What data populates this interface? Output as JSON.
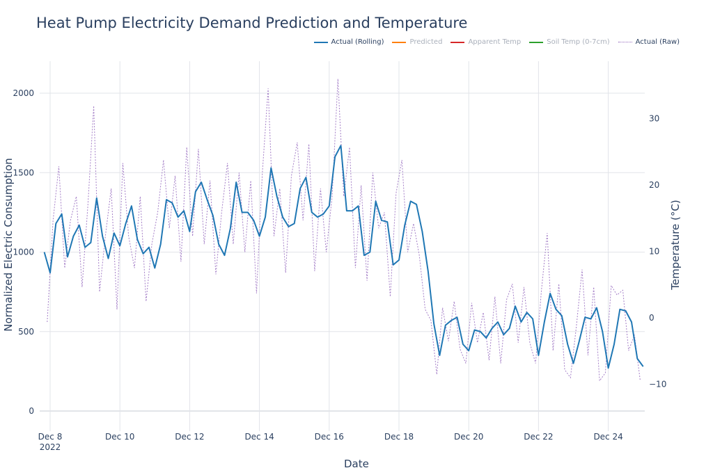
{
  "chart_data": {
    "type": "line",
    "title": "Heat Pump Electricity Demand Prediction and Temperature",
    "xlabel": "Date",
    "ylabel": "Normalized Electric Consumption",
    "y2label": "Temperature (°C)",
    "xlim": [
      "2022-12-07T20:00",
      "2022-12-25T01:00"
    ],
    "ylim": [
      -130,
      2200
    ],
    "y2ticks": [
      30,
      20,
      10,
      0,
      -10
    ],
    "y2ticks_labels": [
      "30",
      "20",
      "10",
      "0",
      "−10"
    ],
    "yticks": [
      0,
      500,
      1000,
      1500,
      2000
    ],
    "yticks_labels": [
      "0",
      "500",
      "1000",
      "1500",
      "2000"
    ],
    "xticks": [
      "2022-12-08",
      "2022-12-10",
      "2022-12-12",
      "2022-12-14",
      "2022-12-16",
      "2022-12-18",
      "2022-12-20",
      "2022-12-22",
      "2022-12-24"
    ],
    "xticks_labels": [
      "Dec 8",
      "Dec 10",
      "Dec 12",
      "Dec 14",
      "Dec 16",
      "Dec 18",
      "Dec 20",
      "Dec 22",
      "Dec 24"
    ],
    "xtick_year": "2022",
    "grid": true,
    "legend_position": "top-right",
    "legend": [
      {
        "name": "Actual (Rolling)",
        "color": "#1f77b4",
        "style": "solid",
        "visible": true
      },
      {
        "name": "Predicted",
        "color": "#ff7f0e",
        "style": "solid",
        "visible": false
      },
      {
        "name": "Apparent Temp",
        "color": "#d62728",
        "style": "solid",
        "visible": false
      },
      {
        "name": "Soil Temp (0-7cm)",
        "color": "#2ca02c",
        "style": "solid",
        "visible": false
      },
      {
        "name": "Actual (Raw)",
        "color": "#9467bd",
        "style": "dot",
        "visible": true
      }
    ],
    "series": [
      {
        "name": "Actual (Rolling)",
        "color": "#1f77b4",
        "start": "2022-12-07T20:00",
        "interval_hours": 4,
        "values": [
          1000,
          870,
          1180,
          1240,
          970,
          1100,
          1170,
          1030,
          1060,
          1340,
          1100,
          960,
          1120,
          1040,
          1180,
          1290,
          1080,
          990,
          1030,
          900,
          1050,
          1330,
          1310,
          1220,
          1260,
          1130,
          1380,
          1440,
          1330,
          1230,
          1050,
          980,
          1150,
          1440,
          1250,
          1250,
          1200,
          1100,
          1220,
          1530,
          1350,
          1220,
          1160,
          1180,
          1400,
          1470,
          1250,
          1220,
          1240,
          1290,
          1600,
          1670,
          1260,
          1260,
          1290,
          980,
          1000,
          1320,
          1200,
          1190,
          920,
          950,
          1170,
          1320,
          1300,
          1130,
          880,
          550,
          350,
          540,
          570,
          590,
          420,
          380,
          510,
          500,
          460,
          520,
          560,
          480,
          520,
          660,
          560,
          620,
          580,
          350,
          560,
          740,
          640,
          600,
          420,
          300,
          440,
          590,
          580,
          650,
          500,
          270,
          420,
          640,
          630,
          560,
          330,
          280
        ]
      },
      {
        "name": "Actual (Raw)",
        "color": "#9467bd",
        "start": "2022-12-07T22:00",
        "interval_hours": 4,
        "values": [
          560,
          1200,
          1540,
          900,
          1200,
          1350,
          780,
          1300,
          1920,
          750,
          1100,
          1400,
          640,
          1560,
          1100,
          900,
          1350,
          690,
          1050,
          1250,
          1580,
          1150,
          1480,
          940,
          1660,
          1100,
          1650,
          1050,
          1450,
          860,
          1250,
          1560,
          1050,
          1500,
          1000,
          1450,
          740,
          1500,
          2030,
          1100,
          1400,
          870,
          1480,
          1690,
          1200,
          1680,
          880,
          1400,
          1000,
          1350,
          2090,
          1350,
          1660,
          900,
          1420,
          820,
          1500,
          1150,
          1250,
          720,
          1370,
          1580,
          1000,
          1180,
          980,
          640,
          570,
          230,
          650,
          440,
          690,
          390,
          300,
          680,
          430,
          620,
          320,
          720,
          300,
          700,
          800,
          430,
          780,
          430,
          300,
          760,
          1120,
          380,
          800,
          260,
          210,
          530,
          890,
          350,
          780,
          190,
          240,
          790,
          730,
          760,
          380,
          480,
          190
        ]
      }
    ]
  }
}
